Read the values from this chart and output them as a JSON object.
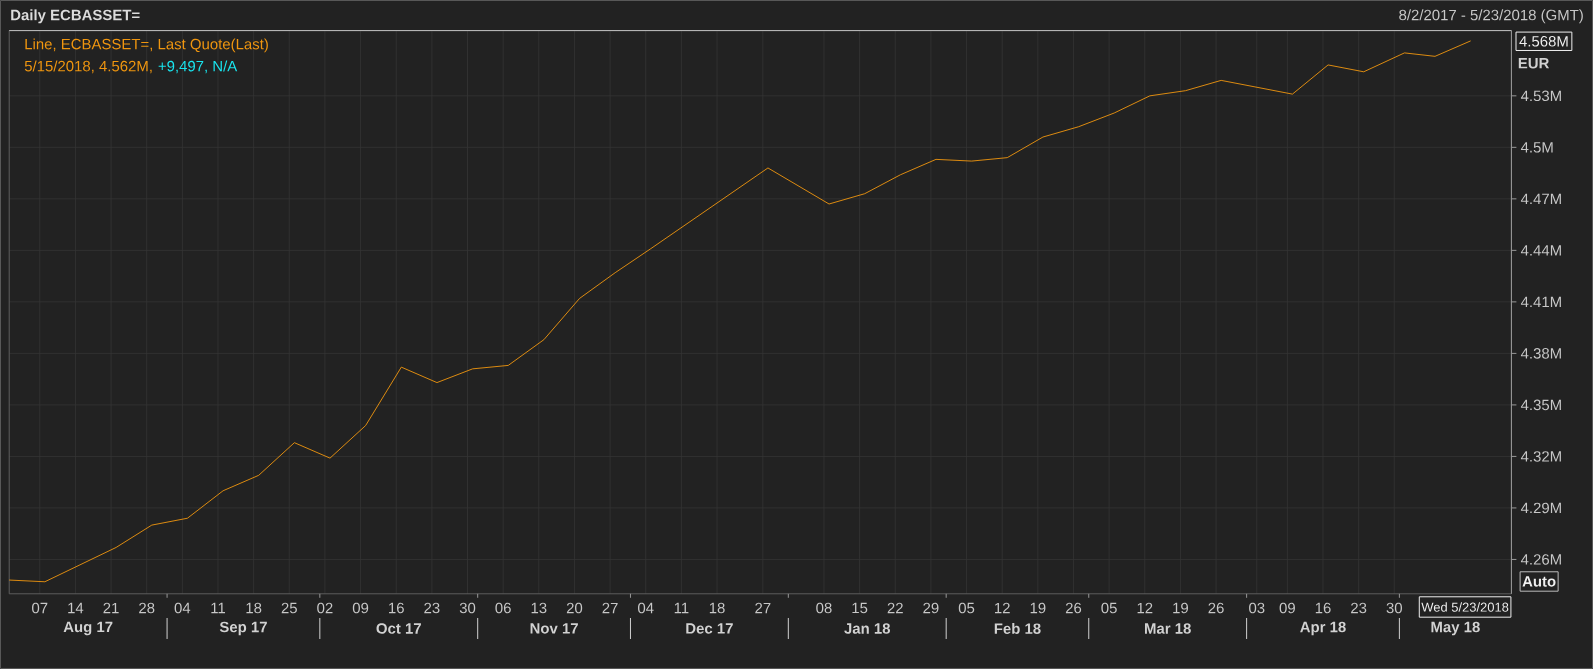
{
  "chart_data": {
    "type": "line",
    "title": "Daily ECBASSET=",
    "subtitle": "8/2/2017 - 5/23/2018 (GMT)",
    "ylabel": "EUR",
    "x": [
      "2017-08-01",
      "2017-08-08",
      "2017-08-22",
      "2017-08-29",
      "2017-09-05",
      "2017-09-12",
      "2017-09-19",
      "2017-09-26",
      "2017-10-03",
      "2017-10-10",
      "2017-10-17",
      "2017-10-24",
      "2017-10-31",
      "2017-11-07",
      "2017-11-14",
      "2017-11-21",
      "2017-11-28",
      "2017-12-05",
      "2017-12-28",
      "2018-01-09",
      "2018-01-16",
      "2018-01-23",
      "2018-01-30",
      "2018-02-06",
      "2018-02-13",
      "2018-02-20",
      "2018-02-27",
      "2018-03-06",
      "2018-03-13",
      "2018-03-20",
      "2018-03-27",
      "2018-04-10",
      "2018-04-17",
      "2018-04-24",
      "2018-05-02",
      "2018-05-08",
      "2018-05-15"
    ],
    "series": [
      {
        "name": "Line, ECBASSET=, Last Quote(Last)",
        "color": "#f0960f",
        "values": [
          4.248,
          4.247,
          4.267,
          4.28,
          4.284,
          4.3,
          4.309,
          4.328,
          4.319,
          4.338,
          4.372,
          4.363,
          4.371,
          4.373,
          4.388,
          4.412,
          4.427,
          4.441,
          4.488,
          4.467,
          4.473,
          4.484,
          4.493,
          4.492,
          4.494,
          4.506,
          4.512,
          4.52,
          4.53,
          4.533,
          4.539,
          4.531,
          4.548,
          4.544,
          4.555,
          4.553,
          4.562
        ]
      }
    ],
    "xlim": [
      "2017-08-01",
      "2018-05-23"
    ],
    "ylim": [
      4.24,
      4.568
    ],
    "xticks": [
      {
        "value": "2017-08-07",
        "label": "07"
      },
      {
        "value": "2017-08-14",
        "label": "14"
      },
      {
        "value": "2017-08-21",
        "label": "21"
      },
      {
        "value": "2017-08-28",
        "label": "28"
      },
      {
        "value": "2017-09-04",
        "label": "04"
      },
      {
        "value": "2017-09-11",
        "label": "11"
      },
      {
        "value": "2017-09-18",
        "label": "18"
      },
      {
        "value": "2017-09-25",
        "label": "25"
      },
      {
        "value": "2017-10-02",
        "label": "02"
      },
      {
        "value": "2017-10-09",
        "label": "09"
      },
      {
        "value": "2017-10-16",
        "label": "16"
      },
      {
        "value": "2017-10-23",
        "label": "23"
      },
      {
        "value": "2017-10-30",
        "label": "30"
      },
      {
        "value": "2017-11-06",
        "label": "06"
      },
      {
        "value": "2017-11-13",
        "label": "13"
      },
      {
        "value": "2017-11-20",
        "label": "20"
      },
      {
        "value": "2017-11-27",
        "label": "27"
      },
      {
        "value": "2017-12-04",
        "label": "04"
      },
      {
        "value": "2017-12-11",
        "label": "11"
      },
      {
        "value": "2017-12-18",
        "label": "18"
      },
      {
        "value": "2017-12-27",
        "label": "27"
      },
      {
        "value": "2018-01-08",
        "label": "08"
      },
      {
        "value": "2018-01-15",
        "label": "15"
      },
      {
        "value": "2018-01-22",
        "label": "22"
      },
      {
        "value": "2018-01-29",
        "label": "29"
      },
      {
        "value": "2018-02-05",
        "label": "05"
      },
      {
        "value": "2018-02-12",
        "label": "12"
      },
      {
        "value": "2018-02-19",
        "label": "19"
      },
      {
        "value": "2018-02-26",
        "label": "26"
      },
      {
        "value": "2018-03-05",
        "label": "05"
      },
      {
        "value": "2018-03-12",
        "label": "12"
      },
      {
        "value": "2018-03-19",
        "label": "19"
      },
      {
        "value": "2018-03-26",
        "label": "26"
      },
      {
        "value": "2018-04-03",
        "label": "03"
      },
      {
        "value": "2018-04-09",
        "label": "09"
      },
      {
        "value": "2018-04-16",
        "label": "16"
      },
      {
        "value": "2018-04-23",
        "label": "23"
      },
      {
        "value": "2018-04-30",
        "label": "30"
      }
    ],
    "yticks": [
      {
        "value": 4.26,
        "label": "4.26M"
      },
      {
        "value": 4.29,
        "label": "4.29M"
      },
      {
        "value": 4.32,
        "label": "4.32M"
      },
      {
        "value": 4.35,
        "label": "4.35M"
      },
      {
        "value": 4.38,
        "label": "4.38M"
      },
      {
        "value": 4.41,
        "label": "4.41M"
      },
      {
        "value": 4.44,
        "label": "4.44M"
      },
      {
        "value": 4.47,
        "label": "4.47M"
      },
      {
        "value": 4.5,
        "label": "4.5M"
      },
      {
        "value": 4.53,
        "label": "4.53M"
      }
    ],
    "grid": true,
    "marker": "none",
    "line_style": "solid",
    "annotations": [
      "5/15/2018, 4.562M,",
      "+9,497, N/A",
      "4.568M",
      "Auto",
      "Wed 5/23/2018",
      "Aug 17",
      "Sep 17",
      "Oct 17",
      "Nov 17",
      "Dec 17",
      "Jan 18",
      "Feb 18",
      "Mar 18",
      "Apr 18",
      "May 18"
    ]
  }
}
